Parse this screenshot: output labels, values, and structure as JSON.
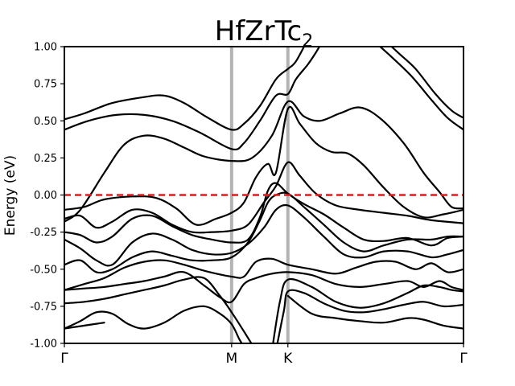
{
  "chart_data": {
    "type": "line",
    "title": "HfZrTc",
    "title_subscript": "2",
    "ylabel": "Energy (eV)",
    "xlabel": "",
    "ylim": [
      -1.0,
      1.0
    ],
    "xlim": [
      0,
      1
    ],
    "yticks": [
      "-1.00",
      "-0.75",
      "-0.50",
      "-0.25",
      "0.00",
      "0.25",
      "0.50",
      "0.75",
      "1.00"
    ],
    "ytick_values": [
      -1.0,
      -0.75,
      -0.5,
      -0.25,
      0.0,
      0.25,
      0.5,
      0.75,
      1.0
    ],
    "kpoints": [
      {
        "label": "Γ",
        "x": 0.0
      },
      {
        "label": "M",
        "x": 0.419
      },
      {
        "label": "K",
        "x": 0.56
      },
      {
        "label": "Γ",
        "x": 1.0
      }
    ],
    "fermi_level": 0.0,
    "colors": {
      "bands": "#000000",
      "fermi": "#e41a1c",
      "kline": "#b3b3b3"
    },
    "grid": false,
    "bands": [
      [
        [
          0,
          0.51
        ],
        [
          0.05,
          0.55
        ],
        [
          0.12,
          0.62
        ],
        [
          0.2,
          0.66
        ],
        [
          0.25,
          0.67
        ],
        [
          0.3,
          0.62
        ],
        [
          0.36,
          0.52
        ],
        [
          0.419,
          0.44
        ],
        [
          0.45,
          0.48
        ],
        [
          0.49,
          0.6
        ],
        [
          0.53,
          0.78
        ],
        [
          0.56,
          0.85
        ],
        [
          0.58,
          0.9
        ],
        [
          0.61,
          1.05
        ]
      ],
      [
        [
          0.8,
          1.05
        ],
        [
          0.84,
          0.95
        ],
        [
          0.88,
          0.85
        ],
        [
          0.93,
          0.68
        ],
        [
          0.97,
          0.57
        ],
        [
          1.0,
          0.52
        ]
      ],
      [
        [
          0,
          0.44
        ],
        [
          0.06,
          0.5
        ],
        [
          0.13,
          0.54
        ],
        [
          0.2,
          0.54
        ],
        [
          0.27,
          0.5
        ],
        [
          0.34,
          0.42
        ],
        [
          0.419,
          0.31
        ],
        [
          0.45,
          0.35
        ],
        [
          0.49,
          0.5
        ],
        [
          0.53,
          0.67
        ],
        [
          0.56,
          0.68
        ],
        [
          0.58,
          0.78
        ],
        [
          0.61,
          0.88
        ],
        [
          0.63,
          0.96
        ],
        [
          0.65,
          1.05
        ]
      ],
      [
        [
          0.77,
          1.05
        ],
        [
          0.82,
          0.93
        ],
        [
          0.87,
          0.8
        ],
        [
          0.92,
          0.64
        ],
        [
          0.96,
          0.52
        ],
        [
          1.0,
          0.44
        ]
      ],
      [
        [
          0,
          -0.18
        ],
        [
          0.04,
          -0.1
        ],
        [
          0.1,
          0.15
        ],
        [
          0.15,
          0.34
        ],
        [
          0.2,
          0.4
        ],
        [
          0.25,
          0.38
        ],
        [
          0.3,
          0.32
        ],
        [
          0.35,
          0.26
        ],
        [
          0.419,
          0.23
        ],
        [
          0.47,
          0.25
        ],
        [
          0.52,
          0.4
        ],
        [
          0.56,
          0.63
        ],
        [
          0.6,
          0.53
        ],
        [
          0.64,
          0.5
        ],
        [
          0.69,
          0.55
        ],
        [
          0.74,
          0.59
        ],
        [
          0.79,
          0.52
        ],
        [
          0.85,
          0.35
        ],
        [
          0.9,
          0.15
        ],
        [
          0.94,
          0.02
        ],
        [
          0.97,
          -0.08
        ],
        [
          1.0,
          -0.09
        ]
      ],
      [
        [
          0,
          -0.1
        ],
        [
          0.05,
          -0.08
        ],
        [
          0.1,
          -0.03
        ],
        [
          0.17,
          -0.01
        ],
        [
          0.23,
          -0.02
        ],
        [
          0.28,
          -0.09
        ],
        [
          0.33,
          -0.2
        ],
        [
          0.38,
          -0.16
        ],
        [
          0.419,
          -0.12
        ],
        [
          0.45,
          -0.05
        ],
        [
          0.48,
          0.12
        ],
        [
          0.51,
          0.21
        ],
        [
          0.53,
          0.15
        ],
        [
          0.56,
          0.58
        ],
        [
          0.59,
          0.48
        ],
        [
          0.63,
          0.35
        ],
        [
          0.67,
          0.29
        ],
        [
          0.71,
          0.28
        ],
        [
          0.75,
          0.2
        ],
        [
          0.8,
          0.05
        ],
        [
          0.85,
          -0.08
        ],
        [
          0.9,
          -0.15
        ],
        [
          0.95,
          -0.13
        ],
        [
          1.0,
          -0.1
        ]
      ],
      [
        [
          0,
          -0.16
        ],
        [
          0.04,
          -0.14
        ],
        [
          0.08,
          -0.22
        ],
        [
          0.12,
          -0.18
        ],
        [
          0.17,
          -0.1
        ],
        [
          0.22,
          -0.12
        ],
        [
          0.27,
          -0.2
        ],
        [
          0.32,
          -0.25
        ],
        [
          0.37,
          -0.25
        ],
        [
          0.419,
          -0.24
        ],
        [
          0.46,
          -0.2
        ],
        [
          0.5,
          -0.05
        ],
        [
          0.53,
          0.06
        ],
        [
          0.56,
          0.22
        ],
        [
          0.59,
          0.13
        ],
        [
          0.63,
          0.01
        ],
        [
          0.68,
          -0.07
        ],
        [
          0.74,
          -0.1
        ],
        [
          0.8,
          -0.12
        ],
        [
          0.86,
          -0.14
        ],
        [
          0.92,
          -0.17
        ],
        [
          1.0,
          -0.19
        ]
      ],
      [
        [
          0,
          -0.25
        ],
        [
          0.04,
          -0.27
        ],
        [
          0.08,
          -0.32
        ],
        [
          0.12,
          -0.28
        ],
        [
          0.17,
          -0.16
        ],
        [
          0.22,
          -0.14
        ],
        [
          0.27,
          -0.21
        ],
        [
          0.32,
          -0.27
        ],
        [
          0.37,
          -0.3
        ],
        [
          0.419,
          -0.32
        ],
        [
          0.46,
          -0.3
        ],
        [
          0.49,
          -0.15
        ],
        [
          0.51,
          0.03
        ],
        [
          0.53,
          0.08
        ],
        [
          0.56,
          0.01
        ],
        [
          0.6,
          -0.06
        ],
        [
          0.65,
          -0.13
        ],
        [
          0.7,
          -0.22
        ],
        [
          0.75,
          -0.3
        ],
        [
          0.8,
          -0.31
        ],
        [
          0.86,
          -0.29
        ],
        [
          0.92,
          -0.34
        ],
        [
          0.96,
          -0.29
        ],
        [
          1.0,
          -0.28
        ]
      ],
      [
        [
          0,
          -0.3
        ],
        [
          0.04,
          -0.36
        ],
        [
          0.08,
          -0.44
        ],
        [
          0.12,
          -0.47
        ],
        [
          0.17,
          -0.32
        ],
        [
          0.22,
          -0.26
        ],
        [
          0.27,
          -0.3
        ],
        [
          0.32,
          -0.37
        ],
        [
          0.37,
          -0.4
        ],
        [
          0.419,
          -0.39
        ],
        [
          0.46,
          -0.33
        ],
        [
          0.5,
          -0.22
        ],
        [
          0.53,
          -0.1
        ],
        [
          0.56,
          -0.07
        ],
        [
          0.6,
          -0.15
        ],
        [
          0.65,
          -0.28
        ],
        [
          0.7,
          -0.4
        ],
        [
          0.75,
          -0.42
        ],
        [
          0.8,
          -0.38
        ],
        [
          0.86,
          -0.38
        ],
        [
          0.92,
          -0.42
        ],
        [
          0.96,
          -0.4
        ],
        [
          1.0,
          -0.37
        ]
      ],
      [
        [
          0,
          -0.47
        ],
        [
          0.04,
          -0.44
        ],
        [
          0.08,
          -0.52
        ],
        [
          0.12,
          -0.5
        ],
        [
          0.17,
          -0.42
        ],
        [
          0.22,
          -0.38
        ],
        [
          0.27,
          -0.41
        ],
        [
          0.32,
          -0.44
        ],
        [
          0.37,
          -0.44
        ],
        [
          0.419,
          -0.42
        ],
        [
          0.46,
          -0.32
        ],
        [
          0.49,
          -0.17
        ],
        [
          0.51,
          -0.05
        ],
        [
          0.53,
          0.0
        ],
        [
          0.56,
          0.01
        ],
        [
          0.6,
          -0.08
        ],
        [
          0.65,
          -0.2
        ],
        [
          0.7,
          -0.32
        ],
        [
          0.75,
          -0.38
        ],
        [
          0.8,
          -0.34
        ],
        [
          0.86,
          -0.3
        ],
        [
          0.92,
          -0.3
        ],
        [
          0.96,
          -0.28
        ],
        [
          1.0,
          -0.28
        ]
      ],
      [
        [
          0,
          -0.64
        ],
        [
          0.05,
          -0.6
        ],
        [
          0.1,
          -0.56
        ],
        [
          0.15,
          -0.49
        ],
        [
          0.2,
          -0.45
        ],
        [
          0.25,
          -0.44
        ],
        [
          0.3,
          -0.47
        ],
        [
          0.35,
          -0.51
        ],
        [
          0.419,
          -0.55
        ],
        [
          0.45,
          -0.55
        ],
        [
          0.48,
          -0.45
        ],
        [
          0.52,
          -0.43
        ],
        [
          0.56,
          -0.47
        ],
        [
          0.62,
          -0.5
        ],
        [
          0.68,
          -0.53
        ],
        [
          0.73,
          -0.49
        ],
        [
          0.78,
          -0.45
        ],
        [
          0.83,
          -0.45
        ],
        [
          0.88,
          -0.5
        ],
        [
          0.92,
          -0.46
        ],
        [
          0.96,
          -0.52
        ],
        [
          1.0,
          -0.5
        ]
      ],
      [
        [
          0,
          -0.64
        ],
        [
          0.05,
          -0.63
        ],
        [
          0.1,
          -0.62
        ],
        [
          0.15,
          -0.6
        ],
        [
          0.2,
          -0.58
        ],
        [
          0.25,
          -0.55
        ],
        [
          0.3,
          -0.52
        ],
        [
          0.35,
          -0.61
        ],
        [
          0.39,
          -0.69
        ],
        [
          0.419,
          -0.72
        ],
        [
          0.45,
          -0.6
        ],
        [
          0.48,
          -0.56
        ],
        [
          0.52,
          -0.53
        ],
        [
          0.56,
          -0.52
        ],
        [
          0.62,
          -0.54
        ],
        [
          0.68,
          -0.6
        ],
        [
          0.74,
          -0.62
        ],
        [
          0.8,
          -0.6
        ],
        [
          0.86,
          -0.58
        ],
        [
          0.9,
          -0.62
        ],
        [
          0.94,
          -0.58
        ],
        [
          0.97,
          -0.62
        ],
        [
          1.0,
          -0.64
        ]
      ],
      [
        [
          0,
          -0.73
        ],
        [
          0.05,
          -0.72
        ],
        [
          0.1,
          -0.7
        ],
        [
          0.15,
          -0.67
        ],
        [
          0.2,
          -0.64
        ],
        [
          0.25,
          -0.61
        ],
        [
          0.3,
          -0.57
        ],
        [
          0.35,
          -0.56
        ],
        [
          0.39,
          -0.68
        ],
        [
          0.419,
          -0.79
        ],
        [
          0.45,
          -0.92
        ],
        [
          0.48,
          -1.05
        ]
      ],
      [
        [
          0.52,
          -1.05
        ],
        [
          0.54,
          -0.72
        ],
        [
          0.56,
          -0.57
        ],
        [
          0.62,
          -0.62
        ],
        [
          0.68,
          -0.72
        ],
        [
          0.74,
          -0.76
        ],
        [
          0.8,
          -0.73
        ],
        [
          0.86,
          -0.66
        ],
        [
          0.9,
          -0.61
        ],
        [
          0.94,
          -0.62
        ],
        [
          0.97,
          -0.64
        ],
        [
          1.0,
          -0.65
        ]
      ],
      [
        [
          0,
          -0.9
        ],
        [
          0.04,
          -0.85
        ],
        [
          0.08,
          -0.79
        ],
        [
          0.12,
          -0.8
        ],
        [
          0.16,
          -0.87
        ],
        [
          0.2,
          -0.9
        ],
        [
          0.25,
          -0.86
        ],
        [
          0.3,
          -0.78
        ],
        [
          0.35,
          -0.75
        ],
        [
          0.39,
          -0.8
        ],
        [
          0.419,
          -0.87
        ],
        [
          0.44,
          -0.98
        ],
        [
          0.46,
          -1.05
        ]
      ],
      [
        [
          0.53,
          -1.05
        ],
        [
          0.55,
          -0.78
        ],
        [
          0.56,
          -0.65
        ],
        [
          0.6,
          -0.66
        ],
        [
          0.65,
          -0.73
        ],
        [
          0.7,
          -0.78
        ],
        [
          0.75,
          -0.79
        ],
        [
          0.8,
          -0.77
        ],
        [
          0.85,
          -0.74
        ],
        [
          0.9,
          -0.72
        ],
        [
          0.95,
          -0.75
        ],
        [
          1.0,
          -0.74
        ]
      ],
      [
        [
          0,
          -0.9
        ],
        [
          0.05,
          -0.88
        ],
        [
          0.1,
          -0.86
        ]
      ],
      [
        [
          0.56,
          -0.68
        ],
        [
          0.62,
          -0.8
        ],
        [
          0.68,
          -0.83
        ],
        [
          0.74,
          -0.85
        ],
        [
          0.8,
          -0.86
        ],
        [
          0.86,
          -0.83
        ],
        [
          0.9,
          -0.84
        ],
        [
          0.95,
          -0.88
        ],
        [
          1.0,
          -0.9
        ]
      ]
    ]
  }
}
